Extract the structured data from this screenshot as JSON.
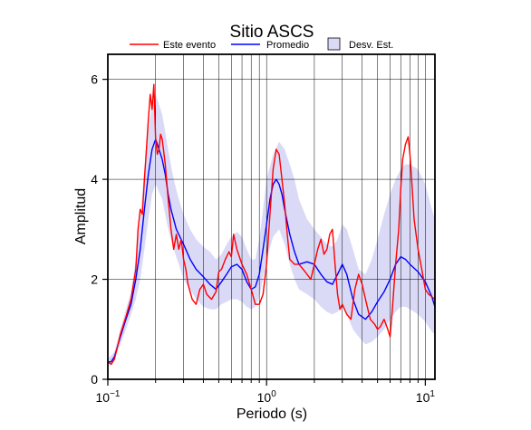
{
  "chart_data": {
    "type": "line",
    "title": "Sitio ASCS",
    "xlabel": "Periodo (s)",
    "ylabel": "Amplitud",
    "xscale": "log",
    "xlim": [
      0.1,
      11.5
    ],
    "ylim": [
      0,
      6.5
    ],
    "xtick_labels": [
      {
        "value": 0.1,
        "base": "10",
        "exp": "−1"
      },
      {
        "value": 1,
        "base": "10",
        "exp": "0"
      },
      {
        "value": 10,
        "base": "10",
        "exp": "1"
      }
    ],
    "yticks": [
      0,
      2,
      4,
      6
    ],
    "grid": true,
    "legend_position": "top",
    "legend": {
      "event": "Este evento",
      "mean": "Promedio",
      "std": "Desv. Est."
    },
    "colors": {
      "event": "#ff0000",
      "mean": "#0000ff",
      "std_fill": "#dadaf7",
      "grid": "#000000"
    },
    "series": [
      {
        "name": "Este evento",
        "x": [
          0.1,
          0.105,
          0.11,
          0.115,
          0.12,
          0.13,
          0.14,
          0.15,
          0.155,
          0.16,
          0.165,
          0.17,
          0.175,
          0.18,
          0.185,
          0.19,
          0.195,
          0.2,
          0.205,
          0.21,
          0.215,
          0.22,
          0.23,
          0.24,
          0.25,
          0.26,
          0.27,
          0.28,
          0.29,
          0.3,
          0.31,
          0.32,
          0.34,
          0.36,
          0.38,
          0.4,
          0.42,
          0.45,
          0.48,
          0.5,
          0.52,
          0.55,
          0.58,
          0.6,
          0.62,
          0.65,
          0.7,
          0.75,
          0.8,
          0.85,
          0.9,
          0.95,
          1.0,
          1.05,
          1.1,
          1.15,
          1.2,
          1.25,
          1.3,
          1.35,
          1.4,
          1.5,
          1.6,
          1.7,
          1.8,
          1.9,
          2.0,
          2.1,
          2.2,
          2.3,
          2.4,
          2.5,
          2.6,
          2.7,
          2.8,
          2.9,
          3.0,
          3.2,
          3.4,
          3.6,
          3.8,
          4.0,
          4.2,
          4.5,
          4.8,
          5.0,
          5.2,
          5.5,
          5.8,
          6.0,
          6.2,
          6.5,
          6.8,
          7.0,
          7.2,
          7.5,
          7.8,
          8.0,
          8.2,
          8.5,
          9.0,
          9.5,
          10.0,
          10.5,
          11.0,
          11.5
        ],
        "y": [
          0.35,
          0.3,
          0.4,
          0.65,
          0.9,
          1.25,
          1.6,
          2.2,
          3.0,
          3.4,
          3.3,
          4.0,
          4.6,
          5.2,
          5.7,
          5.4,
          5.9,
          4.8,
          4.5,
          4.6,
          4.9,
          4.8,
          4.3,
          3.6,
          3.0,
          2.6,
          2.9,
          2.6,
          2.8,
          2.4,
          2.2,
          1.9,
          1.6,
          1.5,
          1.8,
          1.9,
          1.7,
          1.6,
          1.75,
          2.15,
          2.2,
          2.4,
          2.55,
          2.45,
          2.9,
          2.6,
          2.3,
          2.1,
          1.8,
          1.5,
          1.5,
          1.7,
          2.3,
          3.3,
          4.2,
          4.6,
          4.5,
          4.0,
          3.5,
          2.9,
          2.4,
          2.3,
          2.3,
          2.2,
          2.1,
          2.0,
          2.3,
          2.6,
          2.8,
          2.5,
          2.6,
          2.9,
          3.0,
          2.3,
          1.7,
          1.4,
          1.5,
          1.3,
          1.2,
          1.8,
          2.1,
          1.9,
          1.6,
          1.2,
          1.1,
          1.0,
          1.05,
          1.2,
          1.0,
          0.85,
          1.4,
          2.3,
          3.0,
          3.8,
          4.4,
          4.7,
          4.85,
          4.5,
          4.0,
          3.2,
          2.6,
          2.2,
          1.8,
          1.7,
          1.65,
          1.6
        ]
      },
      {
        "name": "Promedio",
        "x": [
          0.1,
          0.105,
          0.11,
          0.12,
          0.13,
          0.14,
          0.15,
          0.16,
          0.17,
          0.18,
          0.19,
          0.2,
          0.21,
          0.22,
          0.23,
          0.24,
          0.25,
          0.27,
          0.3,
          0.33,
          0.36,
          0.4,
          0.44,
          0.48,
          0.52,
          0.56,
          0.6,
          0.65,
          0.7,
          0.75,
          0.8,
          0.85,
          0.9,
          0.95,
          1.0,
          1.05,
          1.1,
          1.15,
          1.2,
          1.25,
          1.3,
          1.4,
          1.5,
          1.6,
          1.8,
          2.0,
          2.2,
          2.4,
          2.6,
          2.8,
          3.0,
          3.2,
          3.5,
          3.8,
          4.2,
          4.6,
          5.0,
          5.5,
          6.0,
          6.5,
          7.0,
          7.5,
          8.0,
          9.0,
          10.0,
          11.0,
          11.5
        ],
        "y": [
          0.35,
          0.35,
          0.45,
          0.85,
          1.2,
          1.5,
          2.0,
          2.6,
          3.4,
          4.1,
          4.6,
          4.8,
          4.6,
          4.4,
          4.1,
          3.7,
          3.4,
          3.0,
          2.7,
          2.4,
          2.2,
          2.05,
          1.9,
          1.8,
          1.95,
          2.1,
          2.25,
          2.3,
          2.2,
          1.95,
          1.8,
          1.85,
          2.1,
          2.6,
          3.1,
          3.6,
          3.9,
          4.0,
          3.9,
          3.7,
          3.4,
          2.9,
          2.55,
          2.3,
          2.35,
          2.3,
          2.1,
          1.95,
          1.9,
          2.1,
          2.3,
          2.1,
          1.6,
          1.3,
          1.2,
          1.35,
          1.55,
          1.75,
          2.0,
          2.3,
          2.45,
          2.4,
          2.3,
          2.15,
          1.95,
          1.65,
          1.45
        ]
      },
      {
        "name": "Desv. Est.",
        "x": [
          0.1,
          0.11,
          0.12,
          0.13,
          0.14,
          0.15,
          0.16,
          0.17,
          0.18,
          0.19,
          0.2,
          0.22,
          0.24,
          0.26,
          0.28,
          0.3,
          0.33,
          0.36,
          0.4,
          0.44,
          0.48,
          0.52,
          0.56,
          0.6,
          0.65,
          0.7,
          0.75,
          0.8,
          0.85,
          0.9,
          0.95,
          1.0,
          1.1,
          1.2,
          1.3,
          1.4,
          1.5,
          1.6,
          1.8,
          2.0,
          2.2,
          2.4,
          2.6,
          2.8,
          3.0,
          3.2,
          3.5,
          3.8,
          4.2,
          4.6,
          5.0,
          5.5,
          6.0,
          6.5,
          7.0,
          7.5,
          8.0,
          9.0,
          10.0,
          11.0,
          11.5
        ],
        "lower": [
          0.3,
          0.4,
          0.7,
          1.0,
          1.3,
          1.6,
          2.0,
          2.6,
          3.2,
          3.7,
          3.9,
          3.6,
          3.0,
          2.6,
          2.3,
          2.0,
          1.8,
          1.6,
          1.45,
          1.4,
          1.4,
          1.5,
          1.55,
          1.6,
          1.6,
          1.55,
          1.45,
          1.4,
          1.45,
          1.65,
          2.0,
          2.4,
          2.85,
          3.0,
          2.7,
          2.3,
          2.0,
          1.8,
          1.7,
          1.6,
          1.45,
          1.35,
          1.3,
          1.35,
          1.45,
          1.3,
          1.0,
          0.85,
          0.7,
          0.75,
          0.85,
          1.0,
          1.2,
          1.35,
          1.45,
          1.45,
          1.4,
          1.3,
          1.15,
          0.95,
          0.9
        ],
        "upper": [
          0.4,
          0.55,
          1.0,
          1.4,
          1.75,
          2.4,
          3.2,
          4.2,
          5.0,
          5.5,
          5.7,
          5.3,
          4.6,
          4.0,
          3.6,
          3.3,
          3.0,
          2.8,
          2.65,
          2.55,
          2.4,
          2.5,
          2.7,
          2.85,
          2.95,
          2.85,
          2.6,
          2.4,
          2.4,
          2.8,
          3.4,
          4.0,
          4.5,
          4.75,
          4.6,
          4.3,
          4.0,
          3.6,
          3.2,
          3.0,
          2.85,
          2.7,
          2.65,
          2.8,
          3.1,
          3.0,
          2.6,
          2.2,
          2.1,
          2.4,
          2.8,
          3.3,
          3.7,
          4.0,
          4.2,
          4.3,
          4.3,
          4.2,
          3.9,
          3.4,
          3.2
        ]
      }
    ]
  }
}
